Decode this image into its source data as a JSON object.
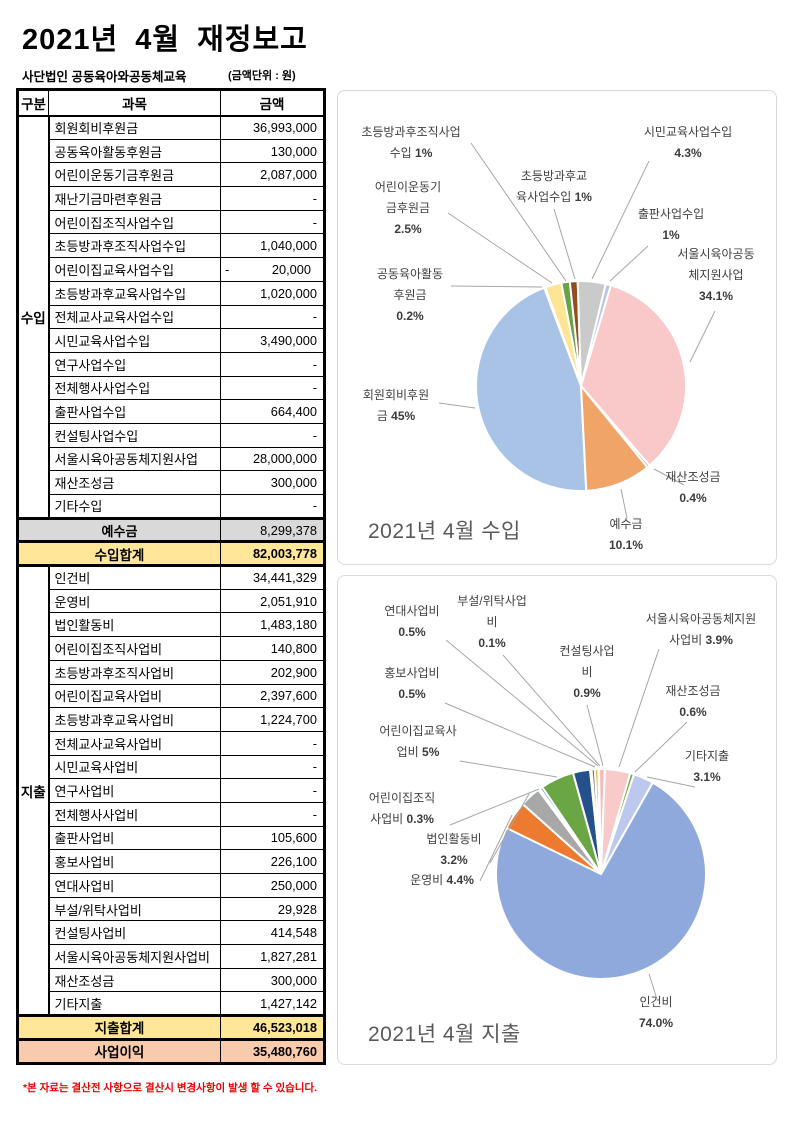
{
  "page": {
    "title": "2021년 4월 재정보고",
    "org": "사단법인 공동육아와공동체교육",
    "unit_note": "(금액단위 : 원)",
    "footnote": "*본 자료는 결산전 사항으로 결산시 변경사항이 발생 할 수 있습니다."
  },
  "table": {
    "headers": [
      "구분",
      "과목",
      "금액"
    ],
    "income_label": "수입",
    "expense_label": "지출",
    "income_rows": [
      {
        "name": "회원회비후원금",
        "amount": "36,993,000"
      },
      {
        "name": "공동육아활동후원금",
        "amount": "130,000"
      },
      {
        "name": "어린이운동기금후원금",
        "amount": "2,087,000"
      },
      {
        "name": "재난기금마련후원금",
        "amount": "-"
      },
      {
        "name": "어린이집조직사업수입",
        "amount": "-"
      },
      {
        "name": "초등방과후조직사업수입",
        "amount": "1,040,000"
      },
      {
        "name": "어린이집교육사업수입",
        "amount": "20,000",
        "negative": true
      },
      {
        "name": "초등방과후교육사업수입",
        "amount": "1,020,000"
      },
      {
        "name": "전체교사교육사업수입",
        "amount": "-"
      },
      {
        "name": "시민교육사업수입",
        "amount": "3,490,000"
      },
      {
        "name": "연구사업수입",
        "amount": "-"
      },
      {
        "name": "전체행사사업수입",
        "amount": "-"
      },
      {
        "name": "출판사업수입",
        "amount": "664,400"
      },
      {
        "name": "컨설팅사업수입",
        "amount": "-"
      },
      {
        "name": "서울시육아공동체지원사업",
        "amount": "28,000,000"
      },
      {
        "name": "재산조성금",
        "amount": "300,000"
      },
      {
        "name": "기타수입",
        "amount": "-"
      }
    ],
    "deposit_row": {
      "name": "예수금",
      "amount": "8,299,378"
    },
    "income_total": {
      "name": "수입합계",
      "amount": "82,003,778"
    },
    "expense_rows": [
      {
        "name": "인건비",
        "amount": "34,441,329"
      },
      {
        "name": "운영비",
        "amount": "2,051,910"
      },
      {
        "name": "법인활동비",
        "amount": "1,483,180"
      },
      {
        "name": "어린이집조직사업비",
        "amount": "140,800"
      },
      {
        "name": "초등방과후조직사업비",
        "amount": "202,900"
      },
      {
        "name": "어린이집교육사업비",
        "amount": "2,397,600"
      },
      {
        "name": "초등방과후교육사업비",
        "amount": "1,224,700"
      },
      {
        "name": "전체교사교육사업비",
        "amount": "-"
      },
      {
        "name": "시민교육사업비",
        "amount": "-"
      },
      {
        "name": "연구사업비",
        "amount": "-"
      },
      {
        "name": "전체행사사업비",
        "amount": "-"
      },
      {
        "name": "출판사업비",
        "amount": "105,600"
      },
      {
        "name": "홍보사업비",
        "amount": "226,100"
      },
      {
        "name": "연대사업비",
        "amount": "250,000"
      },
      {
        "name": "부설/위탁사업비",
        "amount": "29,928"
      },
      {
        "name": "컨설팅사업비",
        "amount": "414,548"
      },
      {
        "name": "서울시육아공동체지원사업비",
        "amount": "1,827,281"
      },
      {
        "name": "재산조성금",
        "amount": "300,000"
      },
      {
        "name": "기타지출",
        "amount": "1,427,142"
      }
    ],
    "expense_total": {
      "name": "지출합계",
      "amount": "46,523,018"
    },
    "profit_row": {
      "name": "사업이익",
      "amount": "35,480,760"
    }
  },
  "chart_data": [
    {
      "type": "pie",
      "title": "2021년 4월 수입",
      "legend": "none",
      "labels": "outside-callout",
      "rotation_deg": 177.1,
      "slices": [
        {
          "label": "회원회비후원금",
          "pct": 45.1,
          "display": "45%",
          "color": "#A9C3E7",
          "callout": [
            "회원회비후원",
            "금 45%"
          ]
        },
        {
          "label": "공동육아활동후원금",
          "pct": 0.2,
          "display": "0.2%",
          "color": "#ED7D31",
          "callout": [
            "공동육아활동",
            "후원금",
            "0.2%"
          ]
        },
        {
          "label": "어린이운동기금후원금",
          "pct": 2.5,
          "display": "2.5%",
          "color": "#FFE494",
          "callout": [
            "어린이운동기",
            "금후원금",
            "2.5%"
          ]
        },
        {
          "label": "초등방과후조직사업수입",
          "pct": 1.3,
          "display": "1%",
          "color": "#67A346",
          "callout": [
            "초등방과후조직사업",
            "수입 1%"
          ]
        },
        {
          "label": "초등방과후교육사업수입",
          "pct": 1.2,
          "display": "1%",
          "color": "#8F4D21",
          "callout": [
            "초등방과후교",
            "육사업수입 1%"
          ]
        },
        {
          "label": "시민교육사업수입",
          "pct": 4.3,
          "display": "4.3%",
          "color": "#CACACA",
          "callout": [
            "시민교육사업수입",
            "4.3%"
          ]
        },
        {
          "label": "출판사업수입",
          "pct": 0.8,
          "display": "1%",
          "color": "#B7C5EB",
          "callout": [
            "출판사업수입",
            "1%"
          ]
        },
        {
          "label": "서울시육아공동체지원사업",
          "pct": 34.1,
          "display": "34.1%",
          "color": "#F9C8C8",
          "callout": [
            "서울시육아공동",
            "체지원사업",
            "34.1%"
          ]
        },
        {
          "label": "재산조성금",
          "pct": 0.4,
          "display": "0.4%",
          "color": "#70AD47",
          "callout": [
            "재산조성금",
            "0.4%"
          ]
        },
        {
          "label": "예수금",
          "pct": 10.1,
          "display": "10.1%",
          "color": "#F0A468",
          "callout": [
            "예수금",
            "10.1%"
          ]
        }
      ]
    },
    {
      "type": "pie",
      "title": "2021년 4월 지출",
      "legend": "none",
      "labels": "outside-callout",
      "rotation_deg": 29.5,
      "slices": [
        {
          "label": "인건비",
          "pct": 74.0,
          "display": "74.0%",
          "color": "#8FA9DC",
          "callout": [
            "인건비",
            "74.0%"
          ]
        },
        {
          "label": "운영비",
          "pct": 4.4,
          "display": "4.4%",
          "color": "#EC7A2F",
          "callout": [
            "운영비 4.4%"
          ]
        },
        {
          "label": "법인활동비",
          "pct": 3.2,
          "display": "3.2%",
          "color": "#A8A8A8",
          "callout": [
            "법인활동비",
            "3.2%"
          ]
        },
        {
          "label": "어린이집조직사업비",
          "pct": 0.3,
          "display": "0.3%",
          "color": "#FFC000",
          "callout": [
            "어린이집조직",
            "사업비 0.3%"
          ]
        },
        {
          "label": "초등방과후조직사업비",
          "pct": 0.44,
          "display": "",
          "color": "#5B9BD5"
        },
        {
          "label": "어린이집교육사업비",
          "pct": 5.15,
          "display": "5%",
          "color": "#6AA644",
          "callout": [
            "어린이집교육사",
            "업비 5%"
          ]
        },
        {
          "label": "초등방과후교육사업비",
          "pct": 2.63,
          "display": "",
          "color": "#24508C"
        },
        {
          "label": "출판사업비",
          "pct": 0.23,
          "display": "",
          "color": "#9E480E"
        },
        {
          "label": "홍보사업비",
          "pct": 0.49,
          "display": "0.5%",
          "color": "#757070",
          "callout": [
            "홍보사업비",
            "0.5%"
          ]
        },
        {
          "label": "연대사업비",
          "pct": 0.54,
          "display": "0.5%",
          "color": "#E3B93B",
          "callout": [
            "연대사업비",
            "0.5%"
          ]
        },
        {
          "label": "부설/위탁사업비",
          "pct": 0.1,
          "display": "0.1%",
          "color": "#997300",
          "callout": [
            "부설/위탁사업",
            "비",
            "0.1%"
          ]
        },
        {
          "label": "컨설팅사업비",
          "pct": 0.9,
          "display": "0.9%",
          "color": "#F6B8B8",
          "callout": [
            "컨설팅사업",
            "비",
            "0.9%"
          ]
        },
        {
          "label": "서울시육아공동체지원사업비",
          "pct": 3.9,
          "display": "3.9%",
          "color": "#F8CACA",
          "callout": [
            "서울시육아공동체지원",
            "사업비 3.9%"
          ]
        },
        {
          "label": "재산조성금",
          "pct": 0.6,
          "display": "0.6%",
          "color": "#6FAE4B",
          "callout": [
            "재산조성금",
            "0.6%"
          ]
        },
        {
          "label": "기타지출",
          "pct": 3.1,
          "display": "3.1%",
          "color": "#BCC8EE",
          "callout": [
            "기타지출",
            "3.1%"
          ]
        }
      ]
    }
  ]
}
